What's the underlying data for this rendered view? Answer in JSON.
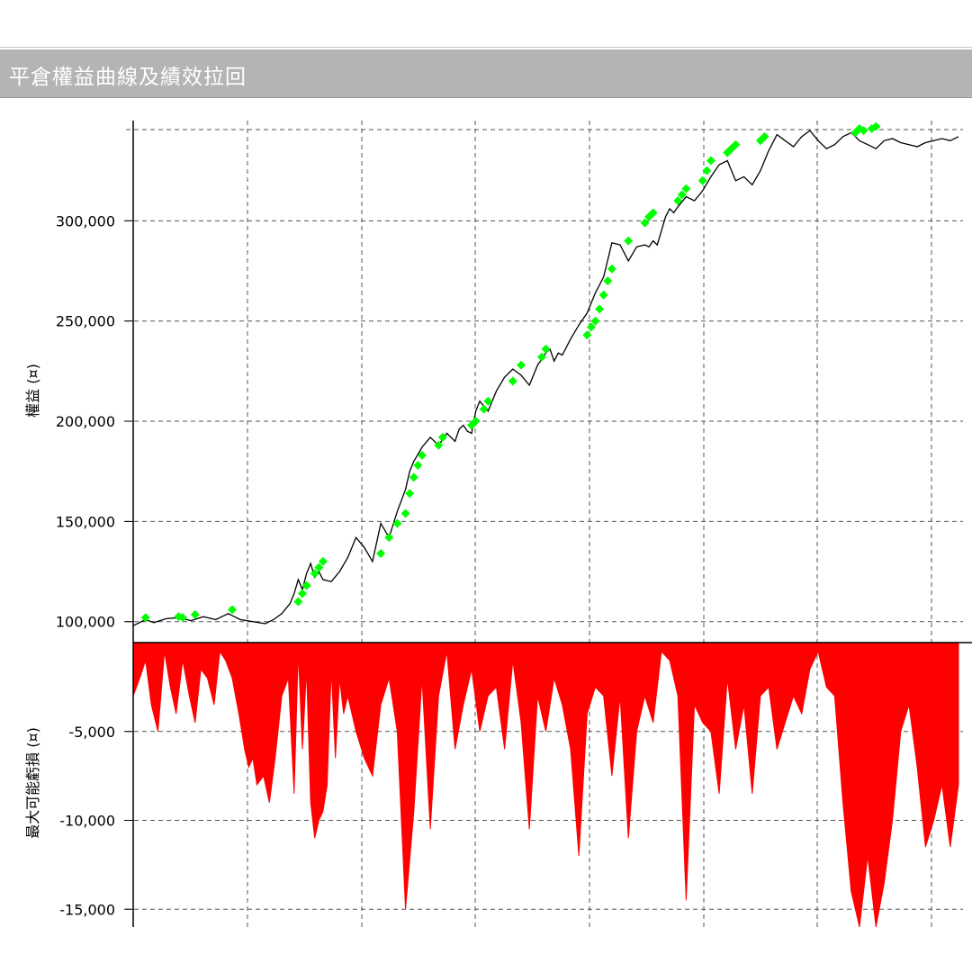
{
  "window": {
    "title": "平倉權益曲線及績效拉回"
  },
  "colors": {
    "title_bar": "#b4b4b4",
    "equity_line": "#000000",
    "new_high_marker": "#00ff00",
    "drawdown_fill": "#ff0000",
    "grid": "#555555"
  },
  "chart_data": [
    {
      "type": "line",
      "title": "",
      "ylabel": "權益 (¤)",
      "xlabel": "",
      "ylim": [
        90000,
        350000
      ],
      "yticks": [
        100000,
        150000,
        200000,
        250000,
        300000
      ],
      "ytick_labels": [
        "100,000",
        "150,000",
        "200,000",
        "250,000",
        "300,000"
      ],
      "grid": true,
      "x_range": [
        0,
        1000
      ],
      "series": [
        {
          "values_note": "",
          "x": [
            0,
            15,
            25,
            40,
            55,
            70,
            85,
            100,
            115,
            130,
            145,
            160,
            170,
            180,
            190,
            195,
            200,
            205,
            210,
            215,
            220,
            225,
            230,
            240,
            250,
            260,
            270,
            280,
            290,
            300,
            310,
            320,
            330,
            335,
            340,
            350,
            360,
            370,
            380,
            385,
            390,
            395,
            400,
            405,
            410,
            415,
            420,
            430,
            440,
            450,
            460,
            470,
            480,
            490,
            500,
            505,
            510,
            515,
            520,
            530,
            540,
            550,
            560,
            570,
            580,
            590,
            600,
            610,
            620,
            625,
            630,
            635,
            640,
            645,
            650,
            655,
            660,
            670,
            680,
            690,
            700,
            710,
            720,
            730,
            740,
            750,
            760,
            770,
            780,
            790,
            800,
            810,
            820,
            830,
            840,
            850,
            860,
            870,
            880,
            890,
            900,
            905,
            910,
            920,
            930,
            940,
            950,
            960,
            970,
            980,
            990,
            1000
          ],
          "values": [
            98000,
            101000,
            99500,
            101500,
            102000,
            100500,
            102500,
            101000,
            104000,
            101000,
            100000,
            99000,
            101000,
            104000,
            109000,
            114000,
            121000,
            116000,
            124000,
            129000,
            122000,
            125000,
            121000,
            120000,
            125000,
            132000,
            142000,
            137000,
            130000,
            149000,
            142000,
            155000,
            166000,
            175000,
            180000,
            187000,
            192000,
            188000,
            194000,
            192000,
            190000,
            196000,
            198000,
            195000,
            194000,
            205000,
            210000,
            205000,
            215000,
            222000,
            226000,
            223000,
            218000,
            228000,
            234000,
            236000,
            230000,
            234000,
            233000,
            241000,
            248000,
            254000,
            264000,
            272000,
            289000,
            288000,
            280000,
            287000,
            288000,
            287000,
            290000,
            288000,
            295000,
            302000,
            306000,
            304000,
            307000,
            312000,
            310000,
            315000,
            322000,
            328000,
            330000,
            320000,
            322000,
            318000,
            325000,
            335000,
            343000,
            340000,
            337000,
            342000,
            345000,
            340000,
            336000,
            338000,
            342000,
            344000,
            340000,
            338000,
            336000,
            338000,
            340000,
            341000,
            339000,
            338000,
            337000,
            339000,
            340000,
            341000,
            340000,
            342000
          ]
        },
        {
          "name": "",
          "x": [
            15,
            55,
            60,
            75,
            120,
            200,
            205,
            210,
            220,
            225,
            230,
            300,
            310,
            320,
            330,
            335,
            340,
            345,
            350,
            370,
            375,
            410,
            415,
            425,
            430,
            460,
            470,
            495,
            500,
            550,
            555,
            560,
            565,
            570,
            575,
            580,
            600,
            620,
            625,
            630,
            660,
            665,
            670,
            690,
            695,
            700,
            720,
            725,
            730,
            760,
            765,
            875,
            880,
            885,
            895,
            900
          ],
          "values": [
            102000,
            102500,
            102000,
            103500,
            106000,
            110000,
            114000,
            118000,
            124000,
            127000,
            130000,
            134000,
            142000,
            149000,
            154000,
            164000,
            172000,
            178000,
            183000,
            188000,
            192000,
            198000,
            200000,
            206000,
            210000,
            220000,
            228000,
            232000,
            236000,
            243000,
            247000,
            250000,
            256000,
            263000,
            270000,
            276000,
            290000,
            299000,
            302000,
            304000,
            310000,
            313000,
            316000,
            320000,
            325000,
            330000,
            334000,
            336000,
            338000,
            340000,
            342000,
            344000,
            346000,
            345000,
            346000,
            347000
          ]
        }
      ]
    },
    {
      "type": "area",
      "title": "",
      "ylabel": "最大可能虧損 (¤)",
      "xlabel": "",
      "ylim": [
        -16000,
        0
      ],
      "yticks": [
        -5000,
        -10000,
        -15000
      ],
      "ytick_labels": [
        "-5,000",
        "-10,000",
        "-15,000"
      ],
      "grid": true,
      "x_range": [
        0,
        1000
      ],
      "series": [
        {
          "x": [
            0,
            8,
            15,
            22,
            30,
            38,
            45,
            52,
            60,
            68,
            75,
            82,
            90,
            98,
            105,
            112,
            120,
            128,
            135,
            140,
            145,
            150,
            158,
            165,
            172,
            180,
            188,
            195,
            200,
            205,
            210,
            215,
            220,
            225,
            230,
            235,
            240,
            245,
            250,
            255,
            260,
            270,
            280,
            290,
            300,
            310,
            320,
            330,
            340,
            350,
            360,
            370,
            380,
            390,
            400,
            410,
            420,
            430,
            440,
            450,
            460,
            470,
            480,
            490,
            500,
            510,
            520,
            530,
            540,
            550,
            560,
            570,
            580,
            590,
            600,
            610,
            620,
            630,
            640,
            650,
            660,
            670,
            680,
            690,
            700,
            710,
            720,
            730,
            740,
            750,
            760,
            770,
            780,
            790,
            800,
            810,
            820,
            830,
            840,
            850,
            860,
            870,
            880,
            890,
            900,
            910,
            920,
            930,
            940,
            950,
            960,
            970,
            980,
            990,
            1000
          ],
          "values": [
            -3000,
            -2000,
            -1000,
            -3500,
            -5000,
            -500,
            -2500,
            -4000,
            -1000,
            -3000,
            -4500,
            -1500,
            -2000,
            -3500,
            -500,
            -1000,
            -2000,
            -4000,
            -6000,
            -7000,
            -6500,
            -8000,
            -7500,
            -9000,
            -6500,
            -3000,
            -2000,
            -8500,
            -500,
            -6000,
            -1500,
            -9000,
            -11000,
            -10000,
            -9500,
            -8000,
            -1500,
            -6500,
            -2000,
            -4000,
            -3000,
            -5000,
            -6500,
            -7500,
            -3500,
            -2000,
            -5000,
            -15000,
            -9500,
            -2000,
            -10500,
            -3000,
            -500,
            -6000,
            -3500,
            -1500,
            -5000,
            -3000,
            -2500,
            -6000,
            -1000,
            -4500,
            -10500,
            -3000,
            -5000,
            -2000,
            -3500,
            -6000,
            -12000,
            -4000,
            -2500,
            -3000,
            -7500,
            -3000,
            -11000,
            -5000,
            -3000,
            -4500,
            -500,
            -1000,
            -3000,
            -14500,
            -3500,
            -4500,
            -5000,
            -8500,
            -2000,
            -6000,
            -3500,
            -8500,
            -3000,
            -2500,
            -6000,
            -4500,
            -3000,
            -4000,
            -1500,
            -500,
            -2500,
            -3000,
            -9000,
            -14000,
            -16000,
            -12000,
            -16000,
            -13500,
            -10000,
            -5000,
            -3500,
            -7000,
            -11500,
            -10000,
            -8000,
            -11500,
            -8000
          ]
        }
      ]
    }
  ]
}
